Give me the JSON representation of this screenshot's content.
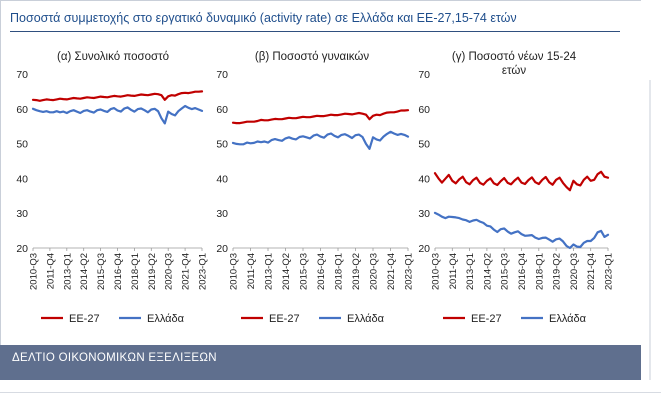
{
  "page": {
    "title": "Ποσοστά συμμετοχής στο εργατικό δυναμικό (activity rate) σε Ελλάδα και ΕΕ-27,15-74 ετών",
    "footer": "ΔΕΛΤΙΟ ΟΙΚΟΝΟΜΙΚΩΝ ΕΞΕΛΙΞΕΩΝ",
    "colors": {
      "eu": "#c00000",
      "greece": "#4472c4",
      "title": "#1f4e8c",
      "footer_bg": "#5f6f8e"
    }
  },
  "chart_data": [
    {
      "type": "line",
      "title_lines": [
        "(α) Συνολικό ποσοστό"
      ],
      "ylim": [
        20,
        70
      ],
      "yticks": [
        20,
        30,
        40,
        50,
        60,
        70
      ],
      "xtick_labels": [
        "2010-Q3",
        "2011-Q4",
        "2013-Q1",
        "2014-Q2",
        "2015-Q3",
        "2016-Q4",
        "2018-Q1",
        "2019-Q2",
        "2020-Q3",
        "2021-Q4",
        "2023-Q1"
      ],
      "x_range": [
        "2010-Q3",
        "2023-Q1"
      ],
      "legend": [
        "ΕΕ-27",
        "Ελλάδα"
      ],
      "legend_position": "bottom",
      "series": [
        {
          "name": "ΕΕ-27",
          "color": "#c00000",
          "values": [
            62.6,
            62.5,
            62.3,
            62.5,
            62.7,
            62.6,
            62.5,
            62.7,
            62.9,
            62.8,
            62.7,
            62.9,
            63.1,
            63.0,
            62.9,
            63.1,
            63.3,
            63.2,
            63.1,
            63.3,
            63.5,
            63.4,
            63.3,
            63.5,
            63.7,
            63.6,
            63.5,
            63.7,
            63.9,
            63.8,
            63.7,
            63.9,
            64.1,
            64.0,
            63.9,
            64.1,
            64.3,
            64.2,
            63.9,
            62.6,
            63.6,
            63.9,
            63.8,
            64.2,
            64.5,
            64.6,
            64.5,
            64.7,
            64.9,
            64.9,
            65.0
          ]
        },
        {
          "name": "Ελλάδα",
          "color": "#4472c4",
          "values": [
            60.0,
            59.6,
            59.3,
            59.1,
            59.3,
            59.0,
            59.0,
            59.3,
            59.0,
            59.2,
            58.8,
            59.3,
            59.6,
            59.2,
            58.8,
            59.4,
            59.6,
            59.2,
            58.9,
            59.6,
            59.8,
            59.4,
            59.1,
            59.9,
            60.2,
            59.5,
            59.2,
            60.1,
            60.4,
            59.7,
            59.2,
            59.9,
            60.1,
            59.6,
            59.0,
            59.8,
            60.0,
            59.3,
            57.3,
            55.8,
            59.2,
            58.5,
            58.1,
            59.3,
            60.1,
            60.8,
            60.3,
            59.9,
            60.2,
            59.8,
            59.4
          ]
        }
      ]
    },
    {
      "type": "line",
      "title_lines": [
        "(β) Ποσοστό γυναικών"
      ],
      "ylim": [
        20,
        70
      ],
      "yticks": [
        20,
        30,
        40,
        50,
        60,
        70
      ],
      "xtick_labels": [
        "2010-Q3",
        "2011-Q4",
        "2013-Q1",
        "2014-Q2",
        "2015-Q3",
        "2016-Q4",
        "2018-Q1",
        "2019-Q2",
        "2020-Q3",
        "2021-Q4",
        "2023-Q1"
      ],
      "x_range": [
        "2010-Q3",
        "2023-Q1"
      ],
      "legend": [
        "ΕΕ-27",
        "Ελλάδα"
      ],
      "legend_position": "bottom",
      "series": [
        {
          "name": "ΕΕ-27",
          "color": "#c00000",
          "values": [
            56.0,
            55.9,
            55.9,
            56.1,
            56.3,
            56.3,
            56.3,
            56.5,
            56.8,
            56.7,
            56.7,
            56.9,
            57.1,
            57.0,
            57.0,
            57.2,
            57.4,
            57.3,
            57.3,
            57.5,
            57.7,
            57.6,
            57.6,
            57.8,
            58.0,
            57.9,
            57.9,
            58.1,
            58.3,
            58.2,
            58.2,
            58.4,
            58.6,
            58.5,
            58.4,
            58.6,
            58.8,
            58.6,
            58.3,
            57.0,
            58.0,
            58.3,
            58.2,
            58.6,
            58.9,
            59.0,
            59.0,
            59.2,
            59.5,
            59.5,
            59.6
          ]
        },
        {
          "name": "Ελλάδα",
          "color": "#4472c4",
          "values": [
            50.2,
            49.9,
            49.8,
            49.8,
            50.3,
            50.1,
            50.2,
            50.6,
            50.4,
            50.6,
            50.3,
            51.0,
            51.3,
            51.0,
            50.8,
            51.5,
            51.8,
            51.4,
            51.2,
            51.9,
            52.1,
            51.8,
            51.5,
            52.3,
            52.6,
            52.0,
            51.7,
            52.6,
            52.9,
            52.2,
            51.8,
            52.5,
            52.7,
            52.2,
            51.6,
            52.4,
            52.6,
            51.9,
            49.9,
            48.5,
            51.8,
            51.2,
            50.9,
            52.0,
            52.8,
            53.4,
            52.9,
            52.5,
            52.8,
            52.5,
            52.0
          ]
        }
      ]
    },
    {
      "type": "line",
      "title_lines": [
        "(γ) Ποσοστό νέων 15-24",
        "ετών"
      ],
      "ylim": [
        20,
        70
      ],
      "yticks": [
        20,
        30,
        40,
        50,
        60,
        70
      ],
      "xtick_labels": [
        "2010-Q3",
        "2011-Q4",
        "2013-Q1",
        "2014-Q2",
        "2015-Q3",
        "2016-Q4",
        "2018-Q1",
        "2019-Q2",
        "2020-Q3",
        "2021-Q4",
        "2023-Q1"
      ],
      "x_range": [
        "2010-Q3",
        "2023-Q1"
      ],
      "legend": [
        "ΕΕ-27",
        "Ελλάδα"
      ],
      "legend_position": "bottom",
      "series": [
        {
          "name": "ΕΕ-27",
          "color": "#c00000",
          "values": [
            41.5,
            40.0,
            38.8,
            39.9,
            41.0,
            39.3,
            38.6,
            39.7,
            40.5,
            38.9,
            38.3,
            39.5,
            40.2,
            38.7,
            38.2,
            39.3,
            40.0,
            38.6,
            38.1,
            39.2,
            40.1,
            38.7,
            38.3,
            39.4,
            40.2,
            38.8,
            38.4,
            39.5,
            40.3,
            38.9,
            38.4,
            39.6,
            40.4,
            38.9,
            38.2,
            39.6,
            40.2,
            38.7,
            37.5,
            36.6,
            39.3,
            38.3,
            38.0,
            39.6,
            40.5,
            39.3,
            39.6,
            41.2,
            41.9,
            40.5,
            40.2
          ]
        },
        {
          "name": "Ελλάδα",
          "color": "#4472c4",
          "values": [
            30.1,
            29.6,
            29.0,
            28.6,
            29.0,
            28.9,
            28.8,
            28.6,
            28.2,
            28.0,
            27.5,
            27.9,
            28.1,
            27.6,
            27.2,
            26.4,
            26.2,
            25.3,
            24.6,
            25.4,
            25.6,
            24.7,
            24.1,
            24.5,
            24.8,
            24.0,
            23.5,
            23.6,
            23.7,
            23.0,
            22.6,
            22.9,
            23.0,
            22.4,
            21.8,
            22.5,
            22.7,
            21.9,
            20.6,
            20.0,
            21.0,
            20.4,
            20.3,
            21.5,
            22.0,
            22.0,
            22.9,
            24.5,
            24.9,
            23.2,
            23.8
          ]
        }
      ]
    }
  ]
}
